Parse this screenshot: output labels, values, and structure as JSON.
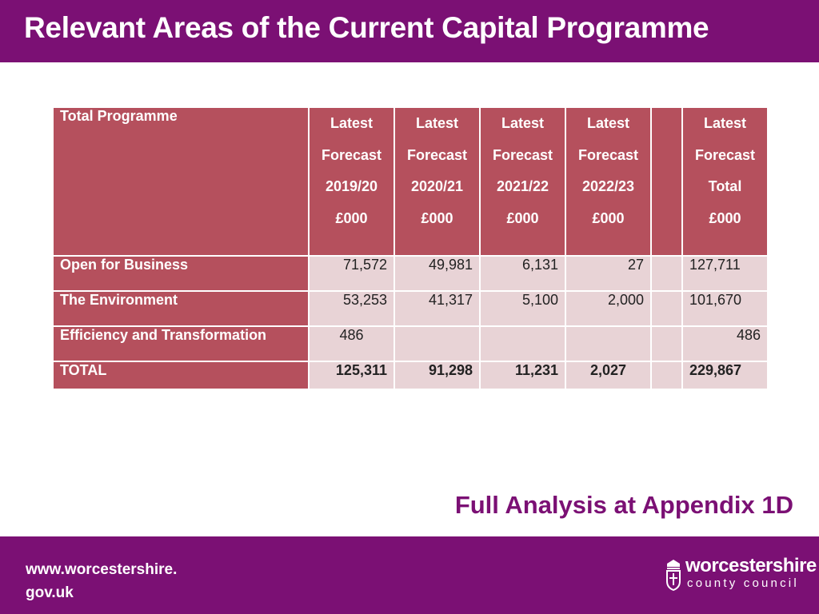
{
  "slide": {
    "title": "Relevant Areas of the Current Capital Programme",
    "appendix_note": "Full Analysis at Appendix 1D"
  },
  "table": {
    "corner_label": "Total Programme",
    "columns": [
      {
        "l1": "Latest",
        "l2": "Forecast",
        "l3": "2019/20",
        "l4": "£000"
      },
      {
        "l1": "Latest",
        "l2": "Forecast",
        "l3": "2020/21",
        "l4": "£000"
      },
      {
        "l1": "Latest",
        "l2": "Forecast",
        "l3": "2021/22",
        "l4": "£000"
      },
      {
        "l1": "Latest",
        "l2": "Forecast",
        "l3": "2022/23",
        "l4": "£000"
      },
      {
        "l1": "",
        "l2": "",
        "l3": "",
        "l4": ""
      },
      {
        "l1": "Latest",
        "l2": "Forecast",
        "l3": "Total",
        "l4": "£000"
      }
    ],
    "rows": [
      {
        "label": "Open for Business",
        "values": [
          "71,572",
          "49,981",
          "6,131",
          "27",
          "",
          "127,711"
        ]
      },
      {
        "label": "The Environment",
        "values": [
          "53,253",
          "41,317",
          "5,100",
          "2,000",
          "",
          "101,670"
        ]
      },
      {
        "label": "Efficiency and Transformation",
        "values": [
          "486",
          "",
          "",
          "",
          "",
          "486"
        ]
      },
      {
        "label": "TOTAL",
        "values": [
          "125,311",
          "91,298",
          "11,231",
          "2,027",
          "",
          "229,867"
        ]
      }
    ]
  },
  "footer": {
    "url_line1": "www.worcestershire.",
    "url_line2": "gov.uk",
    "logo_top": "worcestershire",
    "logo_bottom": "county council",
    "logo_icon": "crest-icon"
  },
  "colors": {
    "brand_purple": "#7b1074",
    "header_red": "#b5505d",
    "cell_pink": "#e8d3d6"
  }
}
